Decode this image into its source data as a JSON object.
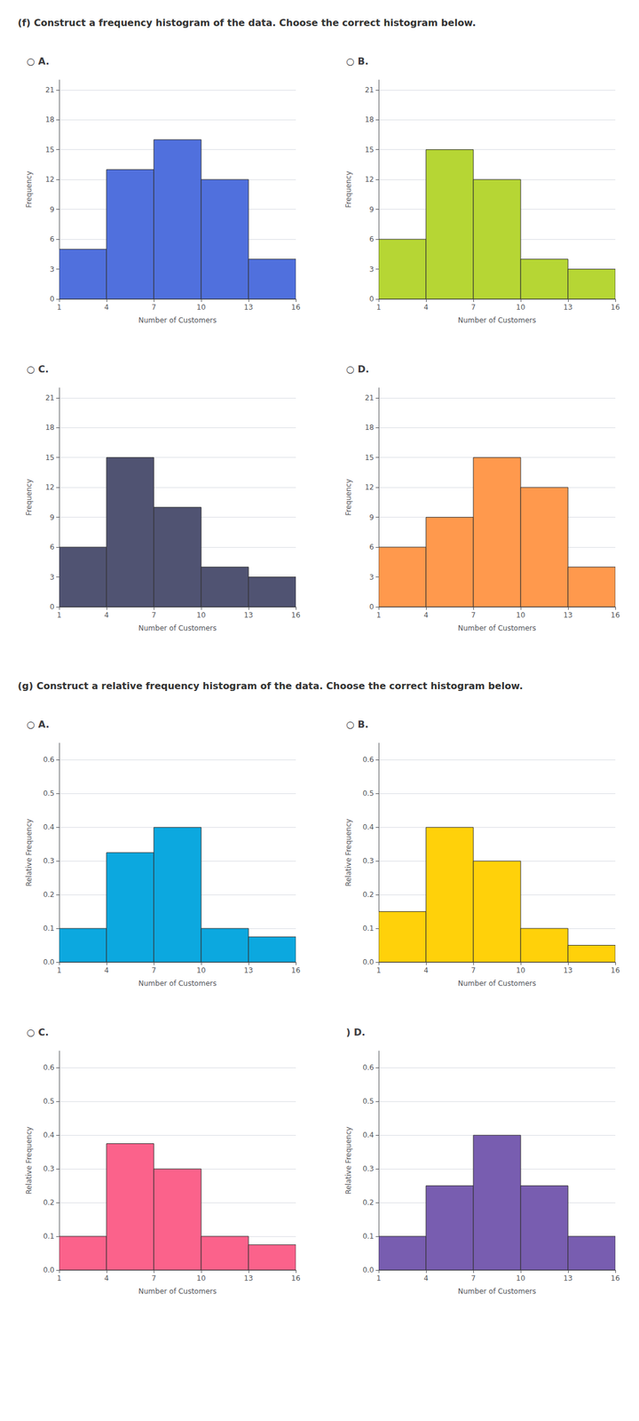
{
  "chart_data": [
    {
      "type": "histogram",
      "title": "○ A.",
      "x_label": "Number of Customers",
      "y_label": "Frequency",
      "bins": [
        1,
        4,
        7,
        10,
        13,
        16
      ],
      "values": [
        5,
        13,
        16,
        12,
        4
      ],
      "xlim": [
        1,
        16
      ],
      "xticks": [
        1,
        4,
        7,
        10,
        13,
        16
      ],
      "ylim": [
        0,
        22
      ],
      "yticks": [
        0,
        3,
        6,
        9,
        12,
        15,
        18,
        21
      ],
      "grid": true,
      "annotations": [
        "(f) Construct a frequency histogram of the data. Choose the correct histogram below."
      ]
    },
    {
      "type": "histogram",
      "title": "○ B.",
      "x_label": "Number of Customers",
      "y_label": "Frequency",
      "bins": [
        1,
        4,
        7,
        10,
        13,
        16
      ],
      "values": [
        6,
        15,
        12,
        4,
        3
      ],
      "xlim": [
        1,
        16
      ],
      "xticks": [
        1,
        4,
        7,
        10,
        13,
        16
      ],
      "ylim": [
        0,
        22
      ],
      "yticks": [
        0,
        3,
        6,
        9,
        12,
        15,
        18,
        21
      ],
      "grid": true
    },
    {
      "type": "histogram",
      "title": "○ C.",
      "x_label": "Number of Customers",
      "y_label": "Frequency",
      "bins": [
        1,
        4,
        7,
        10,
        13,
        16
      ],
      "values": [
        6,
        15,
        10,
        4,
        3
      ],
      "xlim": [
        1,
        16
      ],
      "xticks": [
        1,
        4,
        7,
        10,
        13,
        16
      ],
      "ylim": [
        0,
        22
      ],
      "yticks": [
        0,
        3,
        6,
        9,
        12,
        15,
        18,
        21
      ],
      "grid": true
    },
    {
      "type": "histogram",
      "title": "○ D.",
      "x_label": "Number of Customers",
      "y_label": "Frequency",
      "bins": [
        1,
        4,
        7,
        10,
        13,
        16
      ],
      "values": [
        6,
        9,
        15,
        12,
        4
      ],
      "xlim": [
        1,
        16
      ],
      "xticks": [
        1,
        4,
        7,
        10,
        13,
        16
      ],
      "ylim": [
        0,
        22
      ],
      "yticks": [
        0,
        3,
        6,
        9,
        12,
        15,
        18,
        21
      ],
      "grid": true
    },
    {
      "type": "histogram",
      "title": "○ A.",
      "x_label": "Number of Customers",
      "y_label": "Relative Frequency",
      "bins": [
        1,
        4,
        7,
        10,
        13,
        16
      ],
      "values": [
        0.1,
        0.325,
        0.4,
        0.1,
        0.075
      ],
      "xlim": [
        1,
        16
      ],
      "xticks": [
        1,
        4,
        7,
        10,
        13,
        16
      ],
      "ylim": [
        0,
        0.65
      ],
      "yticks": [
        {
          "value": 0,
          "label": "0.0"
        },
        0.1,
        0.2,
        0.3,
        0.4,
        0.5,
        0.6
      ],
      "grid": true,
      "annotations": [
        "(g) Construct a relative frequency histogram of the data. Choose the correct histogram below."
      ]
    },
    {
      "type": "histogram",
      "title": "○ B.",
      "x_label": "Number of Customers",
      "y_label": "Relative Frequency",
      "bins": [
        1,
        4,
        7,
        10,
        13,
        16
      ],
      "values": [
        0.15,
        0.4,
        0.3,
        0.1,
        0.05
      ],
      "xlim": [
        1,
        16
      ],
      "xticks": [
        1,
        4,
        7,
        10,
        13,
        16
      ],
      "ylim": [
        0,
        0.65
      ],
      "yticks": [
        {
          "value": 0,
          "label": "0.0"
        },
        0.1,
        0.2,
        0.3,
        0.4,
        0.5,
        0.6
      ],
      "grid": true
    },
    {
      "type": "histogram",
      "title": "○ C.",
      "x_label": "Number of Customers",
      "y_label": "Relative Frequency",
      "bins": [
        1,
        4,
        7,
        10,
        13,
        16
      ],
      "values": [
        0.1,
        0.375,
        0.3,
        0.1,
        0.075
      ],
      "xlim": [
        1,
        16
      ],
      "xticks": [
        1,
        4,
        7,
        10,
        13,
        16
      ],
      "ylim": [
        0,
        0.65
      ],
      "yticks": [
        {
          "value": 0,
          "label": "0.0"
        },
        0.1,
        0.2,
        0.3,
        0.4,
        0.5,
        0.6
      ],
      "grid": true
    },
    {
      "type": "histogram",
      "title": ") D.",
      "x_label": "Number of Customers",
      "y_label": "Relative Frequency",
      "bins": [
        1,
        4,
        7,
        10,
        13,
        16
      ],
      "values": [
        0.1,
        0.25,
        0.4,
        0.25,
        0.1
      ],
      "xlim": [
        1,
        16
      ],
      "xticks": [
        1,
        4,
        7,
        10,
        13,
        16
      ],
      "ylim": [
        0,
        0.65
      ],
      "yticks": [
        {
          "value": 0,
          "label": "0.0"
        },
        0.1,
        0.2,
        0.3,
        0.4,
        0.5,
        0.6
      ],
      "grid": true
    }
  ]
}
